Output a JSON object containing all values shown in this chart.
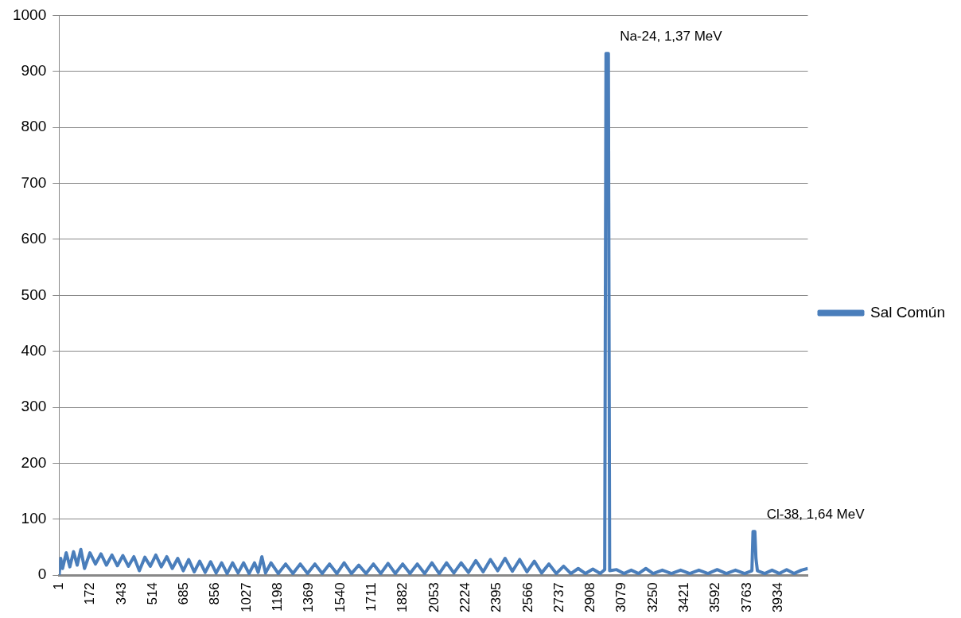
{
  "chart_data": {
    "type": "line",
    "x": [
      1,
      10,
      20,
      40,
      60,
      80,
      100,
      120,
      140,
      170,
      200,
      230,
      260,
      290,
      320,
      350,
      380,
      410,
      440,
      470,
      500,
      530,
      560,
      590,
      620,
      650,
      680,
      710,
      740,
      770,
      800,
      830,
      860,
      890,
      920,
      950,
      980,
      1010,
      1040,
      1070,
      1090,
      1110,
      1130,
      1160,
      1200,
      1240,
      1280,
      1320,
      1360,
      1400,
      1440,
      1480,
      1520,
      1560,
      1600,
      1640,
      1680,
      1720,
      1760,
      1800,
      1840,
      1880,
      1920,
      1960,
      2000,
      2040,
      2080,
      2120,
      2160,
      2200,
      2240,
      2280,
      2320,
      2360,
      2400,
      2440,
      2480,
      2520,
      2560,
      2600,
      2640,
      2680,
      2720,
      2760,
      2800,
      2840,
      2880,
      2920,
      2960,
      2985,
      2992,
      3005,
      3012,
      3050,
      3090,
      3130,
      3170,
      3210,
      3250,
      3300,
      3350,
      3400,
      3450,
      3500,
      3550,
      3600,
      3650,
      3700,
      3750,
      3790,
      3796,
      3806,
      3812,
      3820,
      3860,
      3900,
      3940,
      3980,
      4020,
      4060,
      4096
    ],
    "series": [
      {
        "name": "Sal Común",
        "color": "#4a7ebb",
        "values": [
          0,
          30,
          12,
          40,
          15,
          42,
          18,
          46,
          12,
          40,
          20,
          38,
          18,
          36,
          17,
          35,
          16,
          33,
          8,
          32,
          16,
          36,
          15,
          33,
          12,
          30,
          8,
          28,
          6,
          25,
          5,
          24,
          4,
          22,
          3,
          22,
          4,
          22,
          3,
          22,
          5,
          33,
          4,
          22,
          3,
          20,
          3,
          20,
          3,
          20,
          3,
          20,
          3,
          22,
          3,
          18,
          3,
          20,
          3,
          21,
          3,
          20,
          3,
          20,
          3,
          22,
          3,
          22,
          4,
          22,
          5,
          26,
          6,
          28,
          8,
          30,
          7,
          28,
          6,
          25,
          4,
          20,
          3,
          16,
          3,
          12,
          3,
          11,
          3,
          10,
          932,
          932,
          8,
          10,
          3,
          9,
          3,
          12,
          3,
          9,
          3,
          9,
          3,
          9,
          3,
          10,
          3,
          9,
          3,
          8,
          78,
          78,
          30,
          8,
          3,
          9,
          3,
          10,
          3,
          9,
          12
        ]
      }
    ],
    "xlim": [
      1,
      4096
    ],
    "xticks": [
      1,
      172,
      343,
      514,
      685,
      856,
      1027,
      1198,
      1369,
      1540,
      1711,
      1882,
      2053,
      2224,
      2395,
      2566,
      2737,
      2908,
      3079,
      3250,
      3421,
      3592,
      3763,
      3934
    ],
    "ylim": [
      0,
      1000
    ],
    "yticks": [
      0,
      100,
      200,
      300,
      400,
      500,
      600,
      700,
      800,
      900,
      1000
    ],
    "grid": "y",
    "legend": "right",
    "marker": "none",
    "line_style": "solid",
    "annotations": [
      {
        "text": "Na-24, 1,37 MeV",
        "x": 2998,
        "y": 932
      },
      {
        "text": "Cl-38, 1,64 MeV",
        "x": 3801,
        "y": 78
      }
    ]
  }
}
